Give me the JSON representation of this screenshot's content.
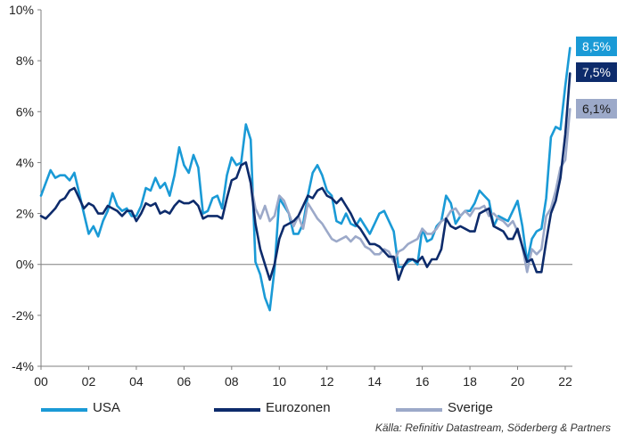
{
  "chart_data": {
    "type": "line",
    "title": "",
    "xlabel": "",
    "ylabel": "",
    "xlim": [
      2000,
      2022.3
    ],
    "ylim": [
      -4,
      10
    ],
    "y_ticks": [
      "-4%",
      "-2%",
      "0%",
      "2%",
      "4%",
      "6%",
      "8%",
      "10%"
    ],
    "x_ticks": [
      "00",
      "02",
      "04",
      "06",
      "08",
      "10",
      "12",
      "14",
      "16",
      "18",
      "20",
      "22"
    ],
    "grid": false,
    "zero_line": true,
    "series": [
      {
        "name": "USA",
        "color": "#1a9ad6",
        "end_label": "8,5%",
        "x": [
          2000.0,
          2000.2,
          2000.4,
          2000.6,
          2000.8,
          2001.0,
          2001.2,
          2001.4,
          2001.6,
          2001.8,
          2002.0,
          2002.2,
          2002.4,
          2002.6,
          2002.8,
          2003.0,
          2003.2,
          2003.4,
          2003.6,
          2003.8,
          2004.0,
          2004.2,
          2004.4,
          2004.6,
          2004.8,
          2005.0,
          2005.2,
          2005.4,
          2005.6,
          2005.8,
          2006.0,
          2006.2,
          2006.4,
          2006.6,
          2006.8,
          2007.0,
          2007.2,
          2007.4,
          2007.6,
          2007.8,
          2008.0,
          2008.2,
          2008.4,
          2008.6,
          2008.8,
          2009.0,
          2009.2,
          2009.4,
          2009.6,
          2009.8,
          2010.0,
          2010.2,
          2010.4,
          2010.6,
          2010.8,
          2011.0,
          2011.2,
          2011.4,
          2011.6,
          2011.8,
          2012.0,
          2012.2,
          2012.4,
          2012.6,
          2012.8,
          2013.0,
          2013.2,
          2013.4,
          2013.6,
          2013.8,
          2014.0,
          2014.2,
          2014.4,
          2014.6,
          2014.8,
          2015.0,
          2015.2,
          2015.4,
          2015.6,
          2015.8,
          2016.0,
          2016.2,
          2016.4,
          2016.6,
          2016.8,
          2017.0,
          2017.2,
          2017.4,
          2017.6,
          2017.8,
          2018.0,
          2018.2,
          2018.4,
          2018.6,
          2018.8,
          2019.0,
          2019.2,
          2019.4,
          2019.6,
          2019.8,
          2020.0,
          2020.2,
          2020.4,
          2020.6,
          2020.8,
          2021.0,
          2021.2,
          2021.4,
          2021.6,
          2021.8,
          2022.0,
          2022.2
        ],
        "values": [
          2.7,
          3.2,
          3.7,
          3.4,
          3.5,
          3.5,
          3.3,
          3.6,
          2.8,
          2.0,
          1.2,
          1.5,
          1.1,
          1.7,
          2.1,
          2.8,
          2.3,
          2.1,
          2.2,
          1.9,
          1.9,
          2.3,
          3.0,
          2.9,
          3.4,
          3.0,
          3.2,
          2.7,
          3.5,
          4.6,
          3.9,
          3.6,
          4.3,
          3.8,
          2.0,
          2.1,
          2.6,
          2.7,
          2.2,
          3.5,
          4.2,
          3.9,
          4.0,
          5.5,
          4.9,
          0.1,
          -0.4,
          -1.3,
          -1.8,
          -0.2,
          2.6,
          2.3,
          2.0,
          1.2,
          1.2,
          1.6,
          2.7,
          3.6,
          3.9,
          3.5,
          2.9,
          2.7,
          1.7,
          1.6,
          2.0,
          1.6,
          1.5,
          1.8,
          1.5,
          1.2,
          1.6,
          2.0,
          2.1,
          1.7,
          1.3,
          -0.1,
          -0.1,
          0.1,
          0.2,
          0.0,
          1.4,
          0.9,
          1.0,
          1.5,
          1.7,
          2.7,
          2.4,
          1.6,
          1.9,
          2.1,
          2.1,
          2.4,
          2.9,
          2.7,
          2.5,
          1.5,
          1.9,
          1.8,
          1.7,
          2.1,
          2.5,
          1.5,
          0.1,
          1.0,
          1.3,
          1.4,
          2.6,
          5.0,
          5.4,
          5.3,
          7.0,
          8.5
        ]
      },
      {
        "name": "Eurozonen",
        "color": "#0d2b6b",
        "end_label": "7,5%",
        "x": [
          2000.0,
          2000.2,
          2000.4,
          2000.6,
          2000.8,
          2001.0,
          2001.2,
          2001.4,
          2001.6,
          2001.8,
          2002.0,
          2002.2,
          2002.4,
          2002.6,
          2002.8,
          2003.0,
          2003.2,
          2003.4,
          2003.6,
          2003.8,
          2004.0,
          2004.2,
          2004.4,
          2004.6,
          2004.8,
          2005.0,
          2005.2,
          2005.4,
          2005.6,
          2005.8,
          2006.0,
          2006.2,
          2006.4,
          2006.6,
          2006.8,
          2007.0,
          2007.2,
          2007.4,
          2007.6,
          2007.8,
          2008.0,
          2008.2,
          2008.4,
          2008.6,
          2008.8,
          2009.0,
          2009.2,
          2009.4,
          2009.6,
          2009.8,
          2010.0,
          2010.2,
          2010.4,
          2010.6,
          2010.8,
          2011.0,
          2011.2,
          2011.4,
          2011.6,
          2011.8,
          2012.0,
          2012.2,
          2012.4,
          2012.6,
          2012.8,
          2013.0,
          2013.2,
          2013.4,
          2013.6,
          2013.8,
          2014.0,
          2014.2,
          2014.4,
          2014.6,
          2014.8,
          2015.0,
          2015.2,
          2015.4,
          2015.6,
          2015.8,
          2016.0,
          2016.2,
          2016.4,
          2016.6,
          2016.8,
          2017.0,
          2017.2,
          2017.4,
          2017.6,
          2017.8,
          2018.0,
          2018.2,
          2018.4,
          2018.6,
          2018.8,
          2019.0,
          2019.2,
          2019.4,
          2019.6,
          2019.8,
          2020.0,
          2020.2,
          2020.4,
          2020.6,
          2020.8,
          2021.0,
          2021.2,
          2021.4,
          2021.6,
          2021.8,
          2022.0,
          2022.2
        ],
        "values": [
          1.9,
          1.8,
          2.0,
          2.2,
          2.5,
          2.6,
          2.9,
          3.0,
          2.6,
          2.2,
          2.4,
          2.3,
          2.0,
          2.0,
          2.3,
          2.2,
          2.1,
          1.9,
          2.1,
          2.1,
          1.7,
          2.0,
          2.4,
          2.3,
          2.4,
          2.0,
          2.1,
          2.0,
          2.3,
          2.5,
          2.4,
          2.4,
          2.5,
          2.3,
          1.8,
          1.9,
          1.9,
          1.9,
          1.8,
          2.6,
          3.3,
          3.4,
          3.9,
          4.0,
          3.2,
          1.6,
          0.6,
          0.0,
          -0.6,
          0.0,
          1.0,
          1.5,
          1.6,
          1.7,
          1.9,
          2.3,
          2.7,
          2.6,
          2.9,
          3.0,
          2.7,
          2.6,
          2.4,
          2.6,
          2.3,
          2.0,
          1.6,
          1.4,
          1.1,
          0.8,
          0.8,
          0.7,
          0.5,
          0.3,
          0.3,
          -0.6,
          -0.1,
          0.2,
          0.2,
          0.1,
          0.3,
          -0.1,
          0.2,
          0.2,
          0.6,
          1.8,
          1.5,
          1.4,
          1.5,
          1.4,
          1.3,
          1.3,
          2.0,
          2.1,
          2.2,
          1.5,
          1.4,
          1.3,
          1.0,
          1.0,
          1.4,
          0.7,
          0.1,
          0.2,
          -0.3,
          -0.3,
          0.9,
          2.0,
          2.5,
          3.4,
          5.1,
          7.5
        ]
      },
      {
        "name": "Sverige",
        "color": "#9ca9c9",
        "end_label": "6,1%",
        "x": [
          2008.6,
          2008.8,
          2009.0,
          2009.2,
          2009.4,
          2009.6,
          2009.8,
          2010.0,
          2010.2,
          2010.4,
          2010.6,
          2010.8,
          2011.0,
          2011.2,
          2011.4,
          2011.6,
          2011.8,
          2012.0,
          2012.2,
          2012.4,
          2012.6,
          2012.8,
          2013.0,
          2013.2,
          2013.4,
          2013.6,
          2013.8,
          2014.0,
          2014.2,
          2014.4,
          2014.6,
          2014.8,
          2015.0,
          2015.2,
          2015.4,
          2015.6,
          2015.8,
          2016.0,
          2016.2,
          2016.4,
          2016.6,
          2016.8,
          2017.0,
          2017.2,
          2017.4,
          2017.6,
          2017.8,
          2018.0,
          2018.2,
          2018.4,
          2018.6,
          2018.8,
          2019.0,
          2019.2,
          2019.4,
          2019.6,
          2019.8,
          2020.0,
          2020.2,
          2020.4,
          2020.6,
          2020.8,
          2021.0,
          2021.2,
          2021.4,
          2021.6,
          2021.8,
          2022.0,
          2022.2
        ],
        "values": [
          4.0,
          3.2,
          2.2,
          1.8,
          2.3,
          1.7,
          1.9,
          2.7,
          2.5,
          2.0,
          1.5,
          1.9,
          1.4,
          2.4,
          2.1,
          1.8,
          1.6,
          1.3,
          1.0,
          0.9,
          1.0,
          1.1,
          0.9,
          1.1,
          1.0,
          0.7,
          0.6,
          0.4,
          0.4,
          0.6,
          0.5,
          0.1,
          0.5,
          0.6,
          0.8,
          0.9,
          1.0,
          1.4,
          1.2,
          1.2,
          1.4,
          1.7,
          1.8,
          2.1,
          2.2,
          1.9,
          2.1,
          1.9,
          2.2,
          2.2,
          2.3,
          1.9,
          2.0,
          1.8,
          1.7,
          1.5,
          1.7,
          1.3,
          0.7,
          -0.3,
          0.6,
          0.4,
          0.6,
          1.9,
          2.2,
          2.9,
          3.8,
          4.1,
          6.1
        ]
      }
    ]
  },
  "legend": {
    "usa": "USA",
    "eurozonen": "Eurozonen",
    "sverige": "Sverige"
  },
  "source": "Källa: Refinitiv Datastream, Söderberg & Partners"
}
